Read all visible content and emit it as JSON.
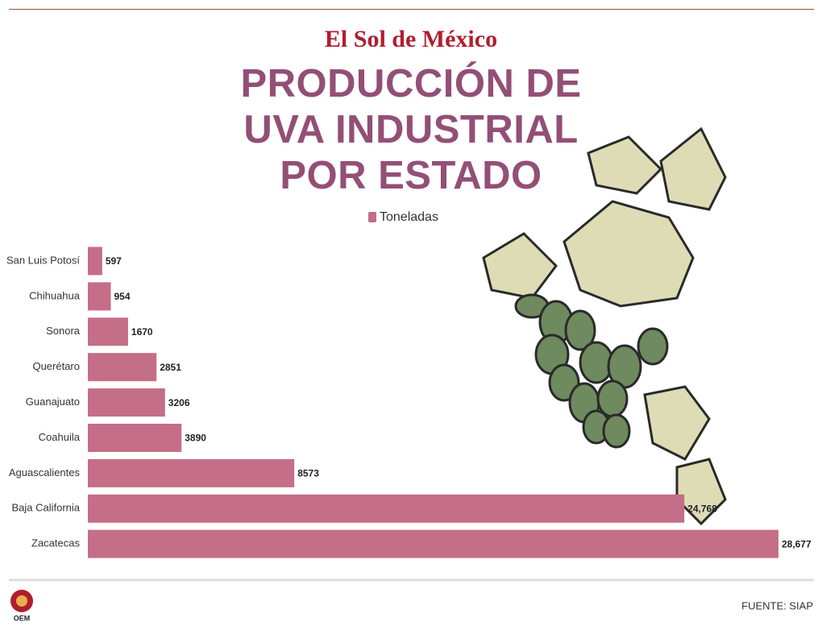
{
  "brand": "El Sol de México",
  "source": "FUENTE: SIAP",
  "logo": "OEM",
  "chart_data": {
    "type": "hbar",
    "title": "PRODUCCIÓN DE UVA INDUSTRIAL POR ESTADO",
    "categories": [
      "San Luis Potosí",
      "Chihuahua",
      "Sonora",
      "Querétaro",
      "Guanajuato",
      "Coahuila",
      "Aguascalientes",
      "Baja California",
      "Zacatecas"
    ],
    "series": [
      {
        "name": "Toneladas",
        "color": "#c46e87",
        "values": [
          597,
          954,
          1670,
          2851,
          3206,
          3890,
          8573,
          24768,
          28677
        ],
        "value_labels": [
          "597",
          "954",
          "1670",
          "2851",
          "3206",
          "3890",
          "8573",
          "24,768",
          "28,677"
        ]
      }
    ],
    "xlim": [
      0,
      30000
    ],
    "legend": "top"
  }
}
